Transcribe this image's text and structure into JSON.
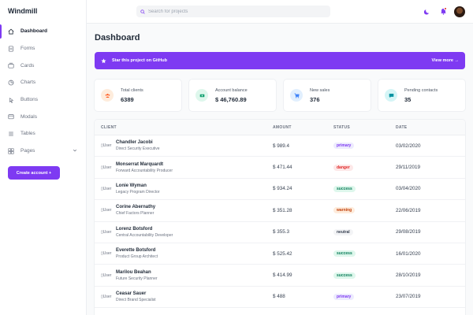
{
  "app": {
    "title": "Windmill"
  },
  "sidebar": {
    "items": [
      {
        "label": "Dashboard",
        "icon": "home-icon",
        "active": true
      },
      {
        "label": "Forms",
        "icon": "forms-icon"
      },
      {
        "label": "Cards",
        "icon": "cards-icon"
      },
      {
        "label": "Charts",
        "icon": "chart-icon"
      },
      {
        "label": "Buttons",
        "icon": "cursor-icon"
      },
      {
        "label": "Modals",
        "icon": "modal-icon"
      },
      {
        "label": "Tables",
        "icon": "table-icon"
      },
      {
        "label": "Pages",
        "icon": "pages-icon"
      }
    ],
    "create_label": "Create account  +"
  },
  "header": {
    "search_placeholder": "Search for projects"
  },
  "main": {
    "title": "Dashboard",
    "cta": {
      "text": "Star this project on GitHub",
      "link": "View more →"
    },
    "cards": [
      {
        "label": "Total clients",
        "value": "6389",
        "color": "#ff5a1f",
        "bg": "#feecdc",
        "icon": "users-icon"
      },
      {
        "label": "Account balance",
        "value": "$ 46,760.89",
        "color": "#0e9f6e",
        "bg": "#def7ec",
        "icon": "money-icon"
      },
      {
        "label": "New sales",
        "value": "376",
        "color": "#3f83f8",
        "bg": "#e1effe",
        "icon": "cart-icon"
      },
      {
        "label": "Pending contacts",
        "value": "35",
        "color": "#0694a2",
        "bg": "#d5f5f6",
        "icon": "chat-icon"
      }
    ],
    "table": {
      "headers": [
        "CLIENT",
        "AMOUNT",
        "STATUS",
        "DATE"
      ],
      "img_alt": "User image",
      "rows": [
        {
          "name": "Chandler Jacobi",
          "job": "Direct Security Executive",
          "amount": "$ 989.4",
          "status": "primary",
          "date": "03/02/2020"
        },
        {
          "name": "Monserrat Marquardt",
          "job": "Forward Accountability Producer",
          "amount": "$ 471.44",
          "status": "danger",
          "date": "29/11/2019"
        },
        {
          "name": "Lonie Wyman",
          "job": "Legacy Program Director",
          "amount": "$ 934.24",
          "status": "success",
          "date": "03/04/2020"
        },
        {
          "name": "Corine Abernathy",
          "job": "Chief Factors Planner",
          "amount": "$ 351.28",
          "status": "warning",
          "date": "22/06/2019"
        },
        {
          "name": "Lorenz Botsford",
          "job": "Central Accountability Developer",
          "amount": "$ 355.3",
          "status": "neutral",
          "date": "29/08/2019"
        },
        {
          "name": "Everette Botsford",
          "job": "Product Group Architect",
          "amount": "$ 525.42",
          "status": "success",
          "date": "16/01/2020"
        },
        {
          "name": "Marilou Beahan",
          "job": "Future Security Planner",
          "amount": "$ 414.99",
          "status": "success",
          "date": "28/10/2019"
        },
        {
          "name": "Ceasar Sauer",
          "job": "Direct Brand Specialist",
          "amount": "$ 488",
          "status": "primary",
          "date": "23/07/2019"
        }
      ]
    }
  },
  "colors": {
    "accent": "#7e3af2",
    "status": {
      "primary": {
        "fg": "#7e3af2",
        "bg": "#edebfe"
      },
      "danger": {
        "fg": "#e02424",
        "bg": "#fde8e8"
      },
      "success": {
        "fg": "#057a55",
        "bg": "#def7ec"
      },
      "warning": {
        "fg": "#c2410c",
        "bg": "#feecdc"
      },
      "neutral": {
        "fg": "#374151",
        "bg": "#f3f4f6"
      }
    }
  }
}
